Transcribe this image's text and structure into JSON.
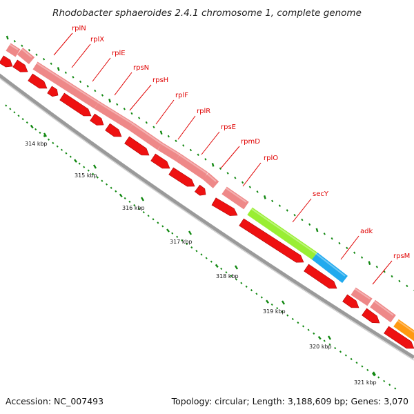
{
  "title": "Rhodobacter sphaeroides 2.4.1 chromosome 1, complete genome",
  "footer": {
    "accession": "Accession: NC_007493",
    "topology": "Topology: circular; Length: 3,188,609 bp; Genes: 3,070"
  },
  "colors": {
    "gene_feature": "#ee8888",
    "cds": "#ee1111",
    "secY": "#99ee33",
    "adk": "#22aaee",
    "next_gene": "#ff9911",
    "label": "#e00000",
    "tick": "#118811",
    "backbone": "#888888"
  },
  "gene_labels": [
    "rplN",
    "rplX",
    "rplE",
    "rpsN",
    "rpsH",
    "rplF",
    "rplR",
    "rpsE",
    "rpmD",
    "rplO",
    "secY",
    "adk",
    "rpsM"
  ],
  "kbp_labels": [
    "314 kbp",
    "315 kbp",
    "316 kbp",
    "317 kbp",
    "318 kbp",
    "319 kbp",
    "320 kbp",
    "321 kbp"
  ]
}
